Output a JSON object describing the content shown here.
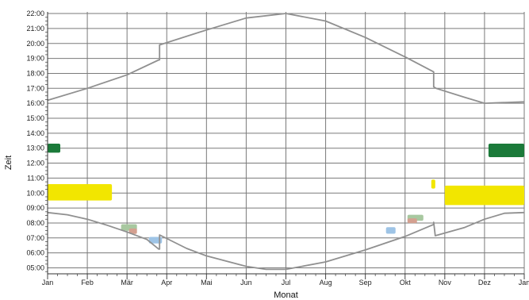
{
  "chart_data": {
    "type": "line",
    "title": "",
    "xlabel": "Monat",
    "ylabel": "Zeit",
    "x_ticks": [
      "Jan",
      "Feb",
      "Mär",
      "Apr",
      "Mai",
      "Jun",
      "Jul",
      "Aug",
      "Sep",
      "Okt",
      "Nov",
      "Dez",
      "Jan"
    ],
    "y_ticks": [
      "05:00",
      "06:00",
      "07:00",
      "08:00",
      "09:00",
      "10:00",
      "11:00",
      "12:00",
      "13:00",
      "14:00",
      "15:00",
      "16:00",
      "17:00",
      "18:00",
      "19:00",
      "20:00",
      "21:00",
      "22:00"
    ],
    "xlim": [
      0,
      12
    ],
    "ylim": [
      4.7,
      22.1
    ],
    "grid": true,
    "series": [
      {
        "color": "#909090",
        "x": [
          0,
          1,
          2,
          2.8,
          2.82,
          2.82,
          4,
          5,
          6,
          7,
          8,
          9,
          9.72,
          9.72,
          9.78,
          10.5,
          11,
          12
        ],
        "y": [
          16.2,
          17.0,
          17.9,
          18.9,
          18.9,
          19.9,
          20.9,
          21.7,
          22.0,
          21.5,
          20.4,
          19.1,
          18.1,
          17.1,
          17.0,
          16.4,
          16.0,
          16.1
        ]
      },
      {
        "color": "#909090",
        "x": [
          0,
          0.5,
          1,
          1.5,
          2,
          2.5,
          2.8,
          2.82,
          2.82,
          3.5,
          4,
          5,
          5.5,
          6,
          7,
          8,
          9,
          9.72,
          9.72,
          9.76,
          10.5,
          11,
          11.5,
          12
        ],
        "y": [
          8.7,
          8.55,
          8.25,
          7.85,
          7.4,
          6.9,
          6.25,
          6.25,
          7.2,
          6.3,
          5.8,
          5.1,
          4.9,
          4.9,
          5.4,
          6.2,
          7.1,
          7.9,
          8.05,
          7.15,
          7.7,
          8.25,
          8.65,
          8.7
        ]
      }
    ],
    "regions": [
      {
        "color": "#f2e600",
        "x0": 0.0,
        "x1": 1.62,
        "y_center": 10.05,
        "half_height": 0.55
      },
      {
        "color": "#f2e600",
        "x0": 9.66,
        "x1": 9.76,
        "y_center": 10.6,
        "half_height": 0.3
      },
      {
        "color": "#f2e600",
        "x0": 10.0,
        "x1": 12.0,
        "y_center": 9.85,
        "half_height": 0.65
      },
      {
        "color": "#1b7a3a",
        "x0": 0.0,
        "x1": 0.32,
        "y_center": 13.0,
        "half_height": 0.3
      },
      {
        "color": "#1b7a3a",
        "x0": 11.1,
        "x1": 12.0,
        "y_center": 12.85,
        "half_height": 0.45
      },
      {
        "color": "#a8c8a0",
        "x0": 1.85,
        "x1": 2.25,
        "y_center": 7.7,
        "half_height": 0.22
      },
      {
        "color": "#d4a090",
        "x0": 2.05,
        "x1": 2.25,
        "y_center": 7.45,
        "half_height": 0.18
      },
      {
        "color": "#9ec4e6",
        "x0": 2.55,
        "x1": 2.88,
        "y_center": 6.85,
        "half_height": 0.22
      },
      {
        "color": "#9ec4e6",
        "x0": 8.52,
        "x1": 8.76,
        "y_center": 7.5,
        "half_height": 0.22
      },
      {
        "color": "#a8c8a0",
        "x0": 9.06,
        "x1": 9.46,
        "y_center": 8.35,
        "half_height": 0.2
      },
      {
        "color": "#d4a090",
        "x0": 9.06,
        "x1": 9.3,
        "y_center": 8.15,
        "half_height": 0.16
      }
    ]
  }
}
